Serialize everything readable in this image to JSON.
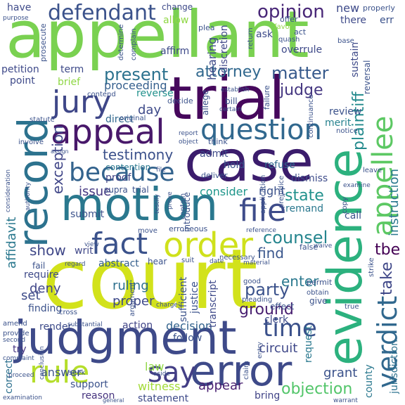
{
  "words": [
    {
      "text": "court",
      "color": "#d2e21b"
    },
    {
      "text": "appellant",
      "color": "#7ad151"
    },
    {
      "text": "case",
      "color": "#3b1c6c"
    },
    {
      "text": "trial",
      "color": "#46085c"
    },
    {
      "text": "motion",
      "color": "#2a788e"
    },
    {
      "text": "judgment",
      "color": "#3e4a89"
    },
    {
      "text": "evidence",
      "color": "#2cb17e"
    },
    {
      "text": "error",
      "color": "#3e4a89"
    },
    {
      "text": "record",
      "color": "#2c728e"
    },
    {
      "text": "appeal",
      "color": "#48186a"
    },
    {
      "text": "question",
      "color": "#31688e"
    },
    {
      "text": "order",
      "color": "#cfe11c"
    },
    {
      "text": "fact",
      "color": "#3b528b"
    },
    {
      "text": "because",
      "color": "#33638d"
    },
    {
      "text": "jury",
      "color": "#3f4788"
    },
    {
      "text": "appellee",
      "color": "#5cc863"
    },
    {
      "text": "file",
      "color": "#3e4c8a"
    },
    {
      "text": "verdict",
      "color": "#31688e"
    },
    {
      "text": "rule",
      "color": "#b5de2b"
    },
    {
      "text": "say",
      "color": "#433e85"
    },
    {
      "text": "time",
      "color": "#3b518b"
    },
    {
      "text": "defendant",
      "color": "#3b528b"
    },
    {
      "text": "opinion",
      "color": "#482677"
    },
    {
      "text": "present",
      "color": "#2c728e"
    },
    {
      "text": "attorney",
      "color": "#31688e"
    },
    {
      "text": "matter",
      "color": "#375a8c"
    },
    {
      "text": "judge",
      "color": "#453781"
    },
    {
      "text": "plaintiff",
      "color": "#238a8d"
    },
    {
      "text": "testimony",
      "color": "#3b518b"
    },
    {
      "text": "exception",
      "color": "#404688"
    },
    {
      "text": "counsel",
      "color": "#25858e"
    },
    {
      "text": "state",
      "color": "#21918c"
    },
    {
      "text": "party",
      "color": "#3b528b"
    },
    {
      "text": "take",
      "color": "#3f4788"
    },
    {
      "text": "instruction",
      "color": "#2a788e"
    },
    {
      "text": "affidavit",
      "color": "#2a788e"
    },
    {
      "text": "show",
      "color": "#3f4788"
    },
    {
      "text": "tbe",
      "color": "#440154"
    },
    {
      "text": "enter",
      "color": "#2a788e"
    },
    {
      "text": "find",
      "color": "#39568c"
    },
    {
      "text": "issue",
      "color": "#453781"
    },
    {
      "text": "consider",
      "color": "#1f968b"
    },
    {
      "text": "day",
      "color": "#3e4a89"
    },
    {
      "text": "deny",
      "color": "#404688"
    },
    {
      "text": "ruling",
      "color": "#2d708e"
    },
    {
      "text": "proper",
      "color": "#3e4989"
    },
    {
      "text": "ground",
      "color": "#481f70"
    },
    {
      "text": "circuit",
      "color": "#3f4889"
    },
    {
      "text": "grant",
      "color": "#3b528b"
    },
    {
      "text": "objection",
      "color": "#52c569"
    },
    {
      "text": "appear",
      "color": "#481f70"
    },
    {
      "text": "witness",
      "color": "#a2da37"
    },
    {
      "text": "law",
      "color": "#8fd744"
    },
    {
      "text": "answer",
      "color": "#3b528b"
    },
    {
      "text": "support",
      "color": "#3b528b"
    },
    {
      "text": "statement",
      "color": "#3e4a89"
    },
    {
      "text": "reason",
      "color": "#46337e"
    },
    {
      "text": "action",
      "color": "#414487"
    },
    {
      "text": "decision",
      "color": "#33638d"
    },
    {
      "text": "bring",
      "color": "#414487"
    },
    {
      "text": "county",
      "color": "#2a788e"
    },
    {
      "text": "request",
      "color": "#2a788e"
    },
    {
      "text": "clerk",
      "color": "#3e4a89"
    },
    {
      "text": "set",
      "color": "#3e4c8a"
    },
    {
      "text": "finding",
      "color": "#3b528b"
    },
    {
      "text": "render",
      "color": "#3e4c8a"
    },
    {
      "text": "try",
      "color": "#453581"
    },
    {
      "text": "correct",
      "color": "#2d708e"
    },
    {
      "text": "sufficient",
      "color": "#3b528b"
    },
    {
      "text": "justice",
      "color": "#3b528b"
    },
    {
      "text": "transcript",
      "color": "#3e4989"
    },
    {
      "text": "jurisdiction",
      "color": "#2c728e"
    },
    {
      "text": "right",
      "color": "#3b528b"
    },
    {
      "text": "remand",
      "color": "#2a788e"
    },
    {
      "text": "refuse",
      "color": "#31688e"
    },
    {
      "text": "dismiss",
      "color": "#3e4c8a"
    },
    {
      "text": "call",
      "color": "#3b528b"
    },
    {
      "text": "submit",
      "color": "#3b528b"
    },
    {
      "text": "writ",
      "color": "#3f4788"
    },
    {
      "text": "require",
      "color": "#3e4a89"
    },
    {
      "text": "fail",
      "color": "#3b528b"
    },
    {
      "text": "abstract",
      "color": "#355f8d"
    },
    {
      "text": "proof",
      "color": "#414487"
    },
    {
      "text": "direct",
      "color": "#31688e"
    },
    {
      "text": "contention",
      "color": "#2a788e"
    },
    {
      "text": "admit",
      "color": "#3e4a89"
    },
    {
      "text": "hold",
      "color": "#3b528b"
    },
    {
      "text": "reverse",
      "color": "#21918c"
    },
    {
      "text": "review",
      "color": "#3b528b"
    },
    {
      "text": "merit",
      "color": "#26828e"
    },
    {
      "text": "proceeding",
      "color": "#355f8d"
    },
    {
      "text": "point",
      "color": "#3e4a89"
    },
    {
      "text": "petition",
      "color": "#3e4989"
    },
    {
      "text": "term",
      "color": "#3e4a89"
    },
    {
      "text": "brief",
      "color": "#8fd744"
    },
    {
      "text": "hearing",
      "color": "#3e4a89"
    },
    {
      "text": "affirm",
      "color": "#3e4a89"
    },
    {
      "text": "discretion",
      "color": "#3f4788"
    },
    {
      "text": "ask",
      "color": "#3e4a89"
    },
    {
      "text": "overrule",
      "color": "#3e4989"
    },
    {
      "text": "new",
      "color": "#3e4a89"
    },
    {
      "text": "there",
      "color": "#3e4a89"
    },
    {
      "text": "sustain",
      "color": "#3e4a89"
    },
    {
      "text": "reversal",
      "color": "#3b528b"
    },
    {
      "text": "have",
      "color": "#3e4a89"
    },
    {
      "text": "allow",
      "color": "#8fd744"
    },
    {
      "text": "change",
      "color": "#3e4a89"
    },
    {
      "text": "plea",
      "color": "#3b528b"
    },
    {
      "text": "offer",
      "color": "#3b528b"
    },
    {
      "text": "properly",
      "color": "#3b528b"
    },
    {
      "text": "err",
      "color": "#3b528b"
    },
    {
      "text": "act",
      "color": "#3b528b"
    },
    {
      "text": "quash",
      "color": "#3b528b"
    },
    {
      "text": "base",
      "color": "#3b528b"
    },
    {
      "text": "favor",
      "color": "#8fd744"
    },
    {
      "text": "return",
      "color": "#3b528b"
    },
    {
      "text": "purpose",
      "color": "#3b528b"
    },
    {
      "text": "prosecute",
      "color": "#3b528b"
    },
    {
      "text": "determine",
      "color": "#3b528b"
    },
    {
      "text": "complain",
      "color": "#3b528b"
    },
    {
      "text": "contend",
      "color": "#3b528b"
    },
    {
      "text": "establish",
      "color": "#3b528b"
    },
    {
      "text": "decide",
      "color": "#3b528b"
    },
    {
      "text": "allege",
      "color": "#3b528b"
    },
    {
      "text": "bill",
      "color": "#3b528b"
    },
    {
      "text": "certain",
      "color": "#3b528b"
    },
    {
      "text": "think",
      "color": "#3b528b"
    },
    {
      "text": "failure",
      "color": "#3b528b"
    },
    {
      "text": "continuance",
      "color": "#3b528b"
    },
    {
      "text": "notice",
      "color": "#3b528b"
    },
    {
      "text": "statute",
      "color": "#3b528b"
    },
    {
      "text": "original",
      "color": "#3b528b"
    },
    {
      "text": "report",
      "color": "#3b528b"
    },
    {
      "text": "object",
      "color": "#3b528b"
    },
    {
      "text": "involve",
      "color": "#3b528b"
    },
    {
      "text": "assign",
      "color": "#3b528b"
    },
    {
      "text": "deliver",
      "color": "#3b528b"
    },
    {
      "text": "introduce",
      "color": "#3b528b"
    },
    {
      "text": "application",
      "color": "#3b528b"
    },
    {
      "text": "prejudice",
      "color": "#3b528b"
    },
    {
      "text": "leave",
      "color": "#3b528b"
    },
    {
      "text": "examine",
      "color": "#3b528b"
    },
    {
      "text": "consideration",
      "color": "#3b528b"
    },
    {
      "text": "authority",
      "color": "#3b528b"
    },
    {
      "text": "contain",
      "color": "#3b528b"
    },
    {
      "text": "prove",
      "color": "#3b528b"
    },
    {
      "text": "testify",
      "color": "#3b528b"
    },
    {
      "text": "move",
      "color": "#3b528b"
    },
    {
      "text": "erroneous",
      "color": "#3b528b"
    },
    {
      "text": "reference",
      "color": "#3b528b"
    },
    {
      "text": "view",
      "color": "#3b528b"
    },
    {
      "text": "hear",
      "color": "#3b528b"
    },
    {
      "text": "suit",
      "color": "#3b528b"
    },
    {
      "text": "date",
      "color": "#3b528b"
    },
    {
      "text": "necessary",
      "color": "#3b528b"
    },
    {
      "text": "material",
      "color": "#3b528b"
    },
    {
      "text": "false",
      "color": "#3b528b"
    },
    {
      "text": "waive",
      "color": "#3b528b"
    },
    {
      "text": "copy",
      "color": "#3b528b"
    },
    {
      "text": "strike",
      "color": "#3b528b"
    },
    {
      "text": "regard",
      "color": "#3b528b"
    },
    {
      "text": "argument",
      "color": "#3b528b"
    },
    {
      "text": "good",
      "color": "#3b528b"
    },
    {
      "text": "pleading",
      "color": "#3b528b"
    },
    {
      "text": "permit",
      "color": "#3b528b"
    },
    {
      "text": "obtain",
      "color": "#3b528b"
    },
    {
      "text": "true",
      "color": "#3b528b"
    },
    {
      "text": "amend",
      "color": "#3b528b"
    },
    {
      "text": "cross",
      "color": "#3b528b"
    },
    {
      "text": "provide",
      "color": "#3b528b"
    },
    {
      "text": "substantial",
      "color": "#3b528b"
    },
    {
      "text": "charge",
      "color": "#3b528b"
    },
    {
      "text": "effect",
      "color": "#3b528b"
    },
    {
      "text": "give",
      "color": "#3b528b"
    },
    {
      "text": "second",
      "color": "#3b528b"
    },
    {
      "text": "conclusion",
      "color": "#3b528b"
    },
    {
      "text": "proceed",
      "color": "#3b528b"
    },
    {
      "text": "seek",
      "color": "#3b528b"
    },
    {
      "text": "aside",
      "color": "#3b528b"
    },
    {
      "text": "claim",
      "color": "#3b528b"
    },
    {
      "text": "entry",
      "color": "#3b528b"
    },
    {
      "text": "complaint",
      "color": "#3b528b"
    },
    {
      "text": "examination",
      "color": "#3b528b"
    },
    {
      "text": "general",
      "color": "#3b528b"
    },
    {
      "text": "warrant",
      "color": "#3b528b"
    },
    {
      "text": "follow",
      "color": "#3b528b"
    },
    {
      "text": "supra",
      "color": "#3b528b"
    },
    {
      "text": "trial",
      "color": "#3b528b"
    },
    {
      "text": "file",
      "color": "#3b528b"
    }
  ]
}
